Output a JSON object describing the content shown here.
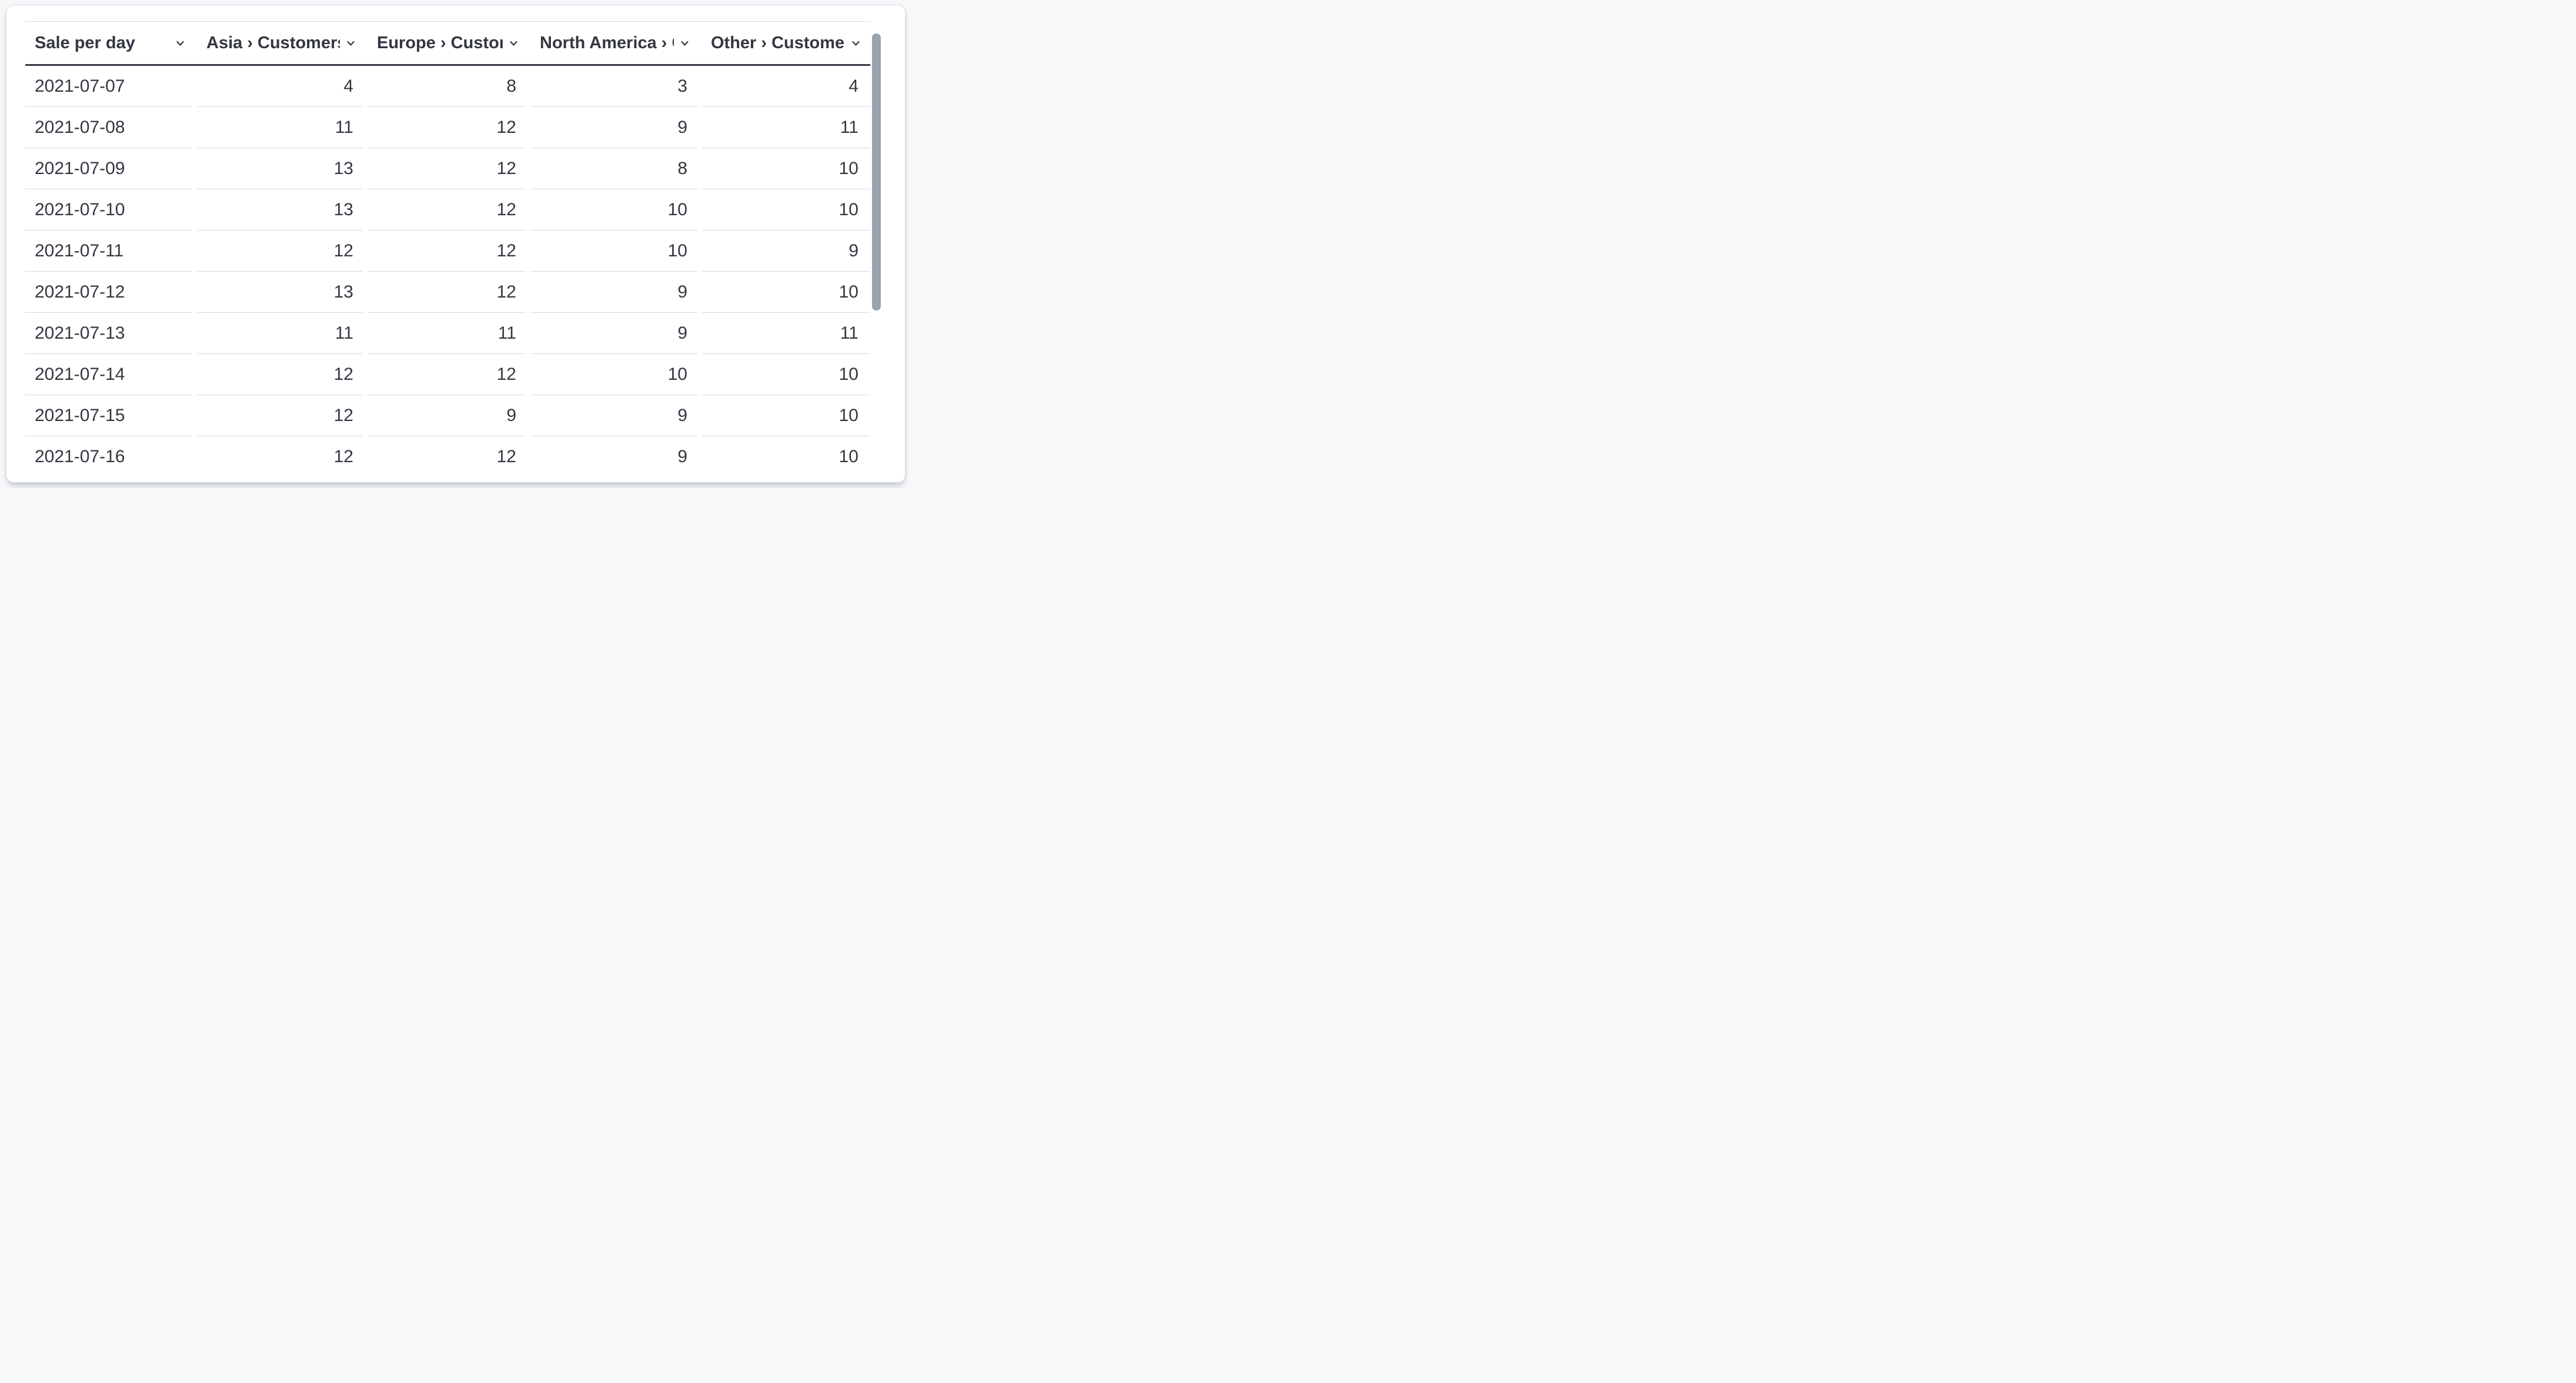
{
  "page": {
    "background": "#f7f8fa"
  },
  "card": {
    "background": "#ffffff",
    "border_color": "#d3dae6"
  },
  "colors": {
    "text": "#343741",
    "header_rule": "#343741",
    "row_divider": "#d3dae6",
    "scrollbar_thumb": "#9aa2ad"
  },
  "table": {
    "columns": [
      {
        "id": "sale-per-day",
        "label": "Sale per day",
        "align": "left",
        "icon": "chevron-down-icon"
      },
      {
        "id": "asia-customers",
        "label": "Asia › Customers",
        "align": "right",
        "icon": "chevron-down-icon"
      },
      {
        "id": "europe-customers",
        "label": "Europe › Customers",
        "align": "right",
        "icon": "chevron-down-icon"
      },
      {
        "id": "north-america-customers",
        "label": "North America › Customers",
        "align": "right",
        "icon": "chevron-down-icon"
      },
      {
        "id": "other-customers",
        "label": "Other › Customers",
        "align": "right",
        "icon": "chevron-down-icon"
      }
    ],
    "rows": [
      {
        "date": "2021-07-07",
        "values": [
          4,
          8,
          3,
          4
        ]
      },
      {
        "date": "2021-07-08",
        "values": [
          11,
          12,
          9,
          11
        ]
      },
      {
        "date": "2021-07-09",
        "values": [
          13,
          12,
          8,
          10
        ]
      },
      {
        "date": "2021-07-10",
        "values": [
          13,
          12,
          10,
          10
        ]
      },
      {
        "date": "2021-07-11",
        "values": [
          12,
          12,
          10,
          9
        ]
      },
      {
        "date": "2021-07-12",
        "values": [
          13,
          12,
          9,
          10
        ]
      },
      {
        "date": "2021-07-13",
        "values": [
          11,
          11,
          9,
          11
        ]
      },
      {
        "date": "2021-07-14",
        "values": [
          12,
          12,
          10,
          10
        ]
      },
      {
        "date": "2021-07-15",
        "values": [
          12,
          9,
          9,
          10
        ]
      },
      {
        "date": "2021-07-16",
        "values": [
          12,
          12,
          9,
          10
        ]
      }
    ]
  },
  "scrollbar": {
    "orientation": "vertical"
  },
  "chart_data": {
    "type": "table",
    "title": "Sale per day",
    "categories": [
      "2021-07-07",
      "2021-07-08",
      "2021-07-09",
      "2021-07-10",
      "2021-07-11",
      "2021-07-12",
      "2021-07-13",
      "2021-07-14",
      "2021-07-15",
      "2021-07-16"
    ],
    "series": [
      {
        "name": "Asia › Customers",
        "values": [
          4,
          11,
          13,
          13,
          12,
          13,
          11,
          12,
          12,
          12
        ]
      },
      {
        "name": "Europe › Customers",
        "values": [
          8,
          12,
          12,
          12,
          12,
          12,
          11,
          12,
          9,
          12
        ]
      },
      {
        "name": "North America › Customers",
        "values": [
          3,
          9,
          8,
          10,
          10,
          9,
          9,
          10,
          9,
          9
        ]
      },
      {
        "name": "Other › Customers",
        "values": [
          4,
          11,
          10,
          10,
          9,
          10,
          11,
          10,
          10,
          10
        ]
      }
    ]
  }
}
